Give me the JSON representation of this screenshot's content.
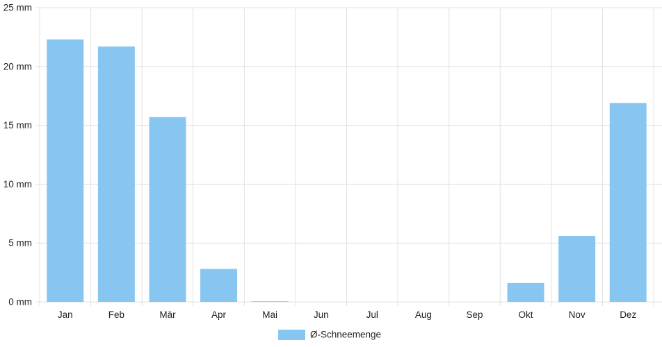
{
  "chart_data": {
    "type": "bar",
    "categories": [
      "Jan",
      "Feb",
      "Mär",
      "Apr",
      "Mai",
      "Jun",
      "Jul",
      "Aug",
      "Sep",
      "Okt",
      "Nov",
      "Dez"
    ],
    "series": [
      {
        "name": "Ø-Schneemenge",
        "values": [
          22.3,
          21.7,
          15.7,
          2.8,
          0.05,
          0,
          0,
          0,
          0,
          1.6,
          5.6,
          16.9
        ],
        "color": "#88c6f2"
      }
    ],
    "ylim": [
      0,
      25
    ],
    "yticks": [
      0,
      5,
      10,
      15,
      20,
      25
    ],
    "ytick_labels": [
      "0 mm",
      "5 mm",
      "10 mm",
      "15 mm",
      "20 mm",
      "25 mm"
    ],
    "grid": true,
    "legend_position": "bottom",
    "title": "",
    "xlabel": "",
    "ylabel": ""
  }
}
